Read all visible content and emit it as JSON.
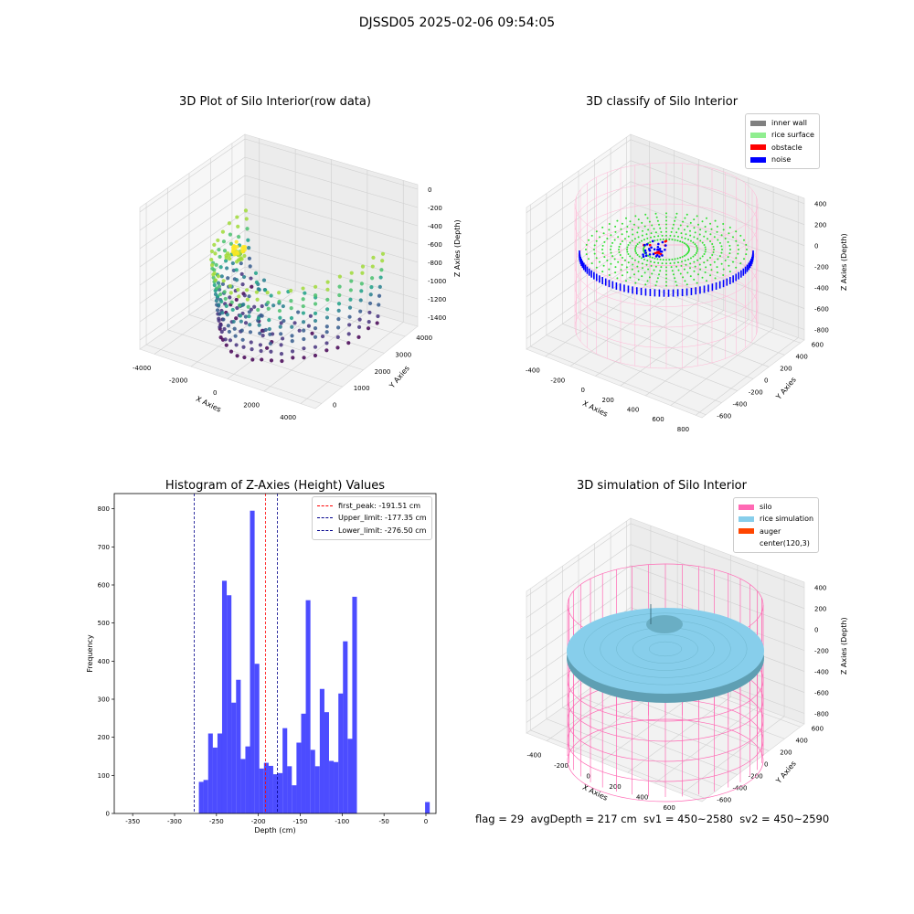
{
  "figure": {
    "suptitle": "DJSSD05 2025-02-06 09:54:05"
  },
  "status_line": "flag = 29  avgDepth = 217 cm  sv1 = 450~2580  sv2 = 450~2590",
  "colors": {
    "histogram": "#0000ff",
    "first_peak": "#ff0000",
    "limits": "#00008b",
    "inner_wall": "#808080",
    "rice_surface": "#90ee90",
    "obstacle": "#ff0000",
    "noise": "#0000ff",
    "silo": "#ff69b4",
    "rice_simulation": "#87ceeb",
    "auger": "#ff4500"
  },
  "chart_data": [
    {
      "id": "raw",
      "type": "scatter",
      "subtype": "3d",
      "title": "3D Plot of Silo Interior(row data)",
      "xlabel": "X Axies",
      "ylabel": "Y Axies",
      "zlabel": "Z Axies (Depth)",
      "xticks": [
        -4000,
        -2000,
        0,
        2000,
        4000
      ],
      "yticks": [
        0,
        1000,
        2000,
        3000,
        4000
      ],
      "zticks": [
        0,
        -200,
        -400,
        -600,
        -800,
        -1000,
        -1200,
        -1400
      ],
      "xlim": [
        -4800,
        4800
      ],
      "ylim": [
        -300,
        4600
      ],
      "zlim": [
        -1500,
        50
      ],
      "colormap": "viridis",
      "description_points": "points on a half-cylindrical wall, depth ranging about -1400 to -600; cluster near surface at about x=-2000, y=1500, z=-600"
    },
    {
      "id": "classify",
      "type": "scatter",
      "subtype": "3d",
      "title": "3D classify of Silo Interior",
      "xlabel": "X Axies",
      "ylabel": "Y Axies",
      "zlabel": "Z Axies (Depth)",
      "xticks": [
        -400,
        -200,
        0,
        200,
        400,
        600,
        800
      ],
      "yticks": [
        -600,
        -400,
        -200,
        0,
        200,
        400,
        600
      ],
      "zticks": [
        400,
        200,
        0,
        -200,
        -400,
        -600,
        -800
      ],
      "xlim": [
        -550,
        850
      ],
      "ylim": [
        -650,
        650
      ],
      "zlim": [
        -900,
        450
      ],
      "legend": [
        "inner wall",
        "rice surface",
        "obstacle",
        "noise"
      ],
      "legend_colors": [
        "#808080",
        "#90ee90",
        "#ff0000",
        "#0000ff"
      ],
      "legend_loc": "upper right"
    },
    {
      "id": "histogram",
      "type": "bar",
      "title": "Histogram of Z-Axies (Height) Values",
      "xlabel": "Depth (cm)",
      "ylabel": "Frequency",
      "xlim": [
        -372,
        12
      ],
      "ylim": [
        0,
        840
      ],
      "xticks": [
        -350,
        -300,
        -250,
        -200,
        -150,
        -100,
        -50,
        0
      ],
      "yticks": [
        0,
        100,
        200,
        300,
        400,
        500,
        600,
        700,
        800
      ],
      "bin_width": 5.55,
      "bins": [
        {
          "x": -271.0,
          "y": 83
        },
        {
          "x": -265.5,
          "y": 88
        },
        {
          "x": -259.9,
          "y": 210
        },
        {
          "x": -254.4,
          "y": 173
        },
        {
          "x": -248.8,
          "y": 210
        },
        {
          "x": -243.3,
          "y": 611
        },
        {
          "x": -237.7,
          "y": 573
        },
        {
          "x": -232.2,
          "y": 291
        },
        {
          "x": -226.6,
          "y": 351
        },
        {
          "x": -221.1,
          "y": 143
        },
        {
          "x": -215.5,
          "y": 176
        },
        {
          "x": -210.0,
          "y": 795
        },
        {
          "x": -204.4,
          "y": 393
        },
        {
          "x": -198.9,
          "y": 118
        },
        {
          "x": -193.3,
          "y": 133
        },
        {
          "x": -187.8,
          "y": 125
        },
        {
          "x": -182.2,
          "y": 103
        },
        {
          "x": -176.7,
          "y": 106
        },
        {
          "x": -171.1,
          "y": 224
        },
        {
          "x": -165.6,
          "y": 124
        },
        {
          "x": -160.0,
          "y": 74
        },
        {
          "x": -154.5,
          "y": 186
        },
        {
          "x": -148.9,
          "y": 262
        },
        {
          "x": -143.4,
          "y": 560
        },
        {
          "x": -137.8,
          "y": 167
        },
        {
          "x": -132.3,
          "y": 124
        },
        {
          "x": -126.7,
          "y": 327
        },
        {
          "x": -121.2,
          "y": 266
        },
        {
          "x": -115.6,
          "y": 138
        },
        {
          "x": -110.1,
          "y": 135
        },
        {
          "x": -104.5,
          "y": 315
        },
        {
          "x": -99.0,
          "y": 452
        },
        {
          "x": -93.4,
          "y": 196
        },
        {
          "x": -87.9,
          "y": 569
        },
        {
          "x": -1.0,
          "y": 30
        }
      ],
      "vlines": [
        {
          "label": "first_peak: -191.51 cm",
          "x": -191.51,
          "color": "#ff0000"
        },
        {
          "label": "Upper_limit: -177.35 cm",
          "x": -177.35,
          "color": "#00008b"
        },
        {
          "label": "Lower_limit: -276.50 cm",
          "x": -276.5,
          "color": "#00008b"
        }
      ],
      "legend_loc": "upper right"
    },
    {
      "id": "simulation",
      "type": "surface",
      "subtype": "3d",
      "title": "3D simulation of Silo Interior",
      "xlabel": "X Axies",
      "ylabel": "Y Axies",
      "zlabel": "Z Axies (Depth)",
      "xticks": [
        -400,
        -200,
        0,
        200,
        400,
        600
      ],
      "yticks": [
        -600,
        -400,
        -200,
        0,
        200,
        400,
        600
      ],
      "zticks": [
        400,
        200,
        0,
        -200,
        -400,
        -600,
        -800
      ],
      "xlim": [
        -550,
        750
      ],
      "ylim": [
        -650,
        650
      ],
      "zlim": [
        -900,
        450
      ],
      "legend": [
        "silo",
        "rice simulation",
        "auger",
        "center(120,3)"
      ],
      "legend_colors": [
        "#ff69b4",
        "#87ceeb",
        "#ff4500",
        ""
      ],
      "legend_loc": "upper right"
    }
  ]
}
